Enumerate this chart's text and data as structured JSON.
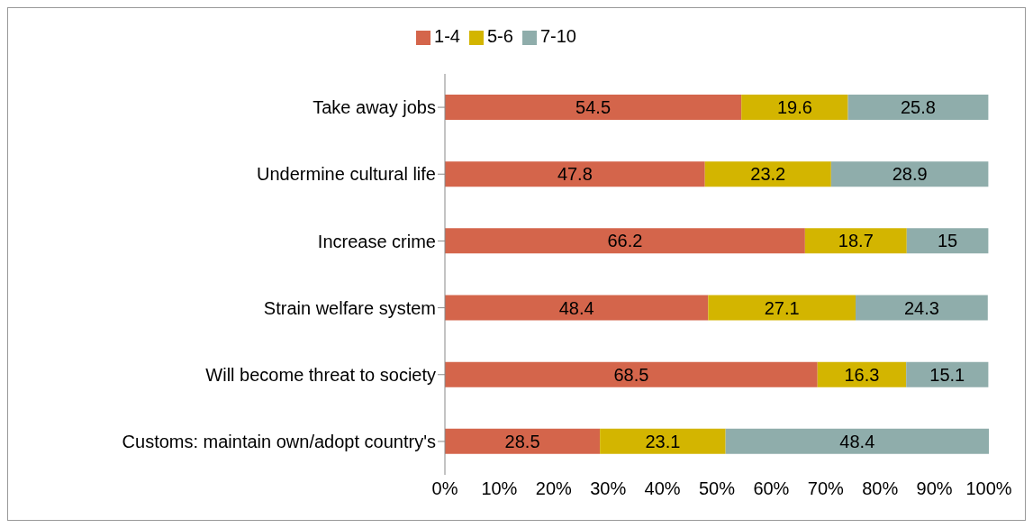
{
  "chart_data": {
    "type": "bar",
    "orientation": "horizontal",
    "stacked": true,
    "categories": [
      "Take away jobs",
      "Undermine cultural life",
      "Increase crime",
      "Strain welfare system",
      "Will become threat to society",
      "Customs: maintain own/adopt country's"
    ],
    "series": [
      {
        "name": "1-4",
        "color": "#d4654b",
        "values": [
          54.5,
          47.8,
          66.2,
          48.4,
          68.5,
          28.5
        ]
      },
      {
        "name": "5-6",
        "color": "#d3b500",
        "values": [
          19.6,
          23.2,
          18.7,
          27.1,
          16.3,
          23.1
        ]
      },
      {
        "name": "7-10",
        "color": "#8fadab",
        "values": [
          25.8,
          28.9,
          15,
          24.3,
          15.1,
          48.4
        ]
      }
    ],
    "xlim": [
      0,
      100
    ],
    "xticks": [
      {
        "value": 0,
        "label": "0%"
      },
      {
        "value": 10,
        "label": "10%"
      },
      {
        "value": 20,
        "label": "20%"
      },
      {
        "value": 30,
        "label": "30%"
      },
      {
        "value": 40,
        "label": "40%"
      },
      {
        "value": 50,
        "label": "50%"
      },
      {
        "value": 60,
        "label": "60%"
      },
      {
        "value": 70,
        "label": "70%"
      },
      {
        "value": 80,
        "label": "80%"
      },
      {
        "value": 90,
        "label": "90%"
      },
      {
        "value": 100,
        "label": "100%"
      }
    ],
    "data_labels": true,
    "legend": "top",
    "grid": false
  }
}
